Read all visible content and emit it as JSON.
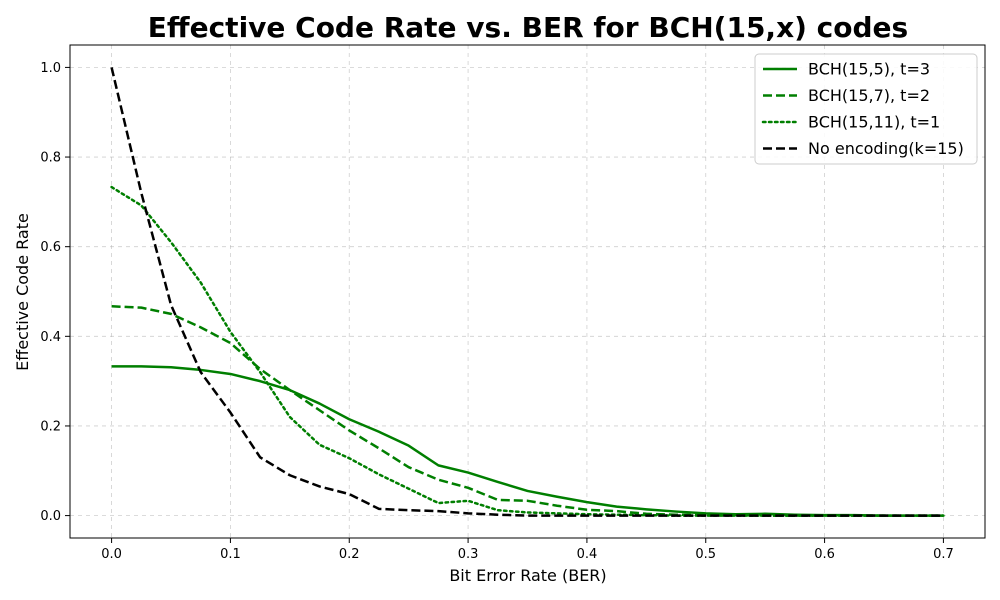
{
  "chart_data": {
    "type": "line",
    "title": "Effective Code Rate vs. BER for BCH(15,x) codes",
    "xlabel": "Bit Error Rate (BER)",
    "ylabel": "Effective Code Rate",
    "xlim": [
      -0.035,
      0.735
    ],
    "ylim": [
      -0.05,
      1.05
    ],
    "xticks": [
      0.0,
      0.1,
      0.2,
      0.3,
      0.4,
      0.5,
      0.6,
      0.7
    ],
    "xtick_labels": [
      "0.0",
      "0.1",
      "0.2",
      "0.3",
      "0.4",
      "0.5",
      "0.6",
      "0.7"
    ],
    "yticks": [
      0.0,
      0.2,
      0.4,
      0.6,
      0.8,
      1.0
    ],
    "ytick_labels": [
      "0.0",
      "0.2",
      "0.4",
      "0.6",
      "0.8",
      "1.0"
    ],
    "grid": true,
    "legend_position": "top-right",
    "x": [
      0.0,
      0.025,
      0.05,
      0.075,
      0.1,
      0.125,
      0.15,
      0.175,
      0.2,
      0.225,
      0.25,
      0.275,
      0.3,
      0.325,
      0.35,
      0.375,
      0.4,
      0.425,
      0.45,
      0.475,
      0.5,
      0.525,
      0.55,
      0.575,
      0.6,
      0.625,
      0.65,
      0.675,
      0.7
    ],
    "series": [
      {
        "name": "BCH(15,5), t=3",
        "color": "#007f00",
        "style": "solid",
        "values": [
          0.333,
          0.333,
          0.331,
          0.325,
          0.316,
          0.3,
          0.28,
          0.25,
          0.215,
          0.187,
          0.156,
          0.112,
          0.096,
          0.075,
          0.055,
          0.042,
          0.03,
          0.02,
          0.014,
          0.009,
          0.005,
          0.003,
          0.004,
          0.002,
          0.001,
          0.001,
          0.0,
          0.0,
          0.0
        ]
      },
      {
        "name": "BCH(15,7), t=2",
        "color": "#007f00",
        "style": "dashed",
        "values": [
          0.467,
          0.464,
          0.45,
          0.42,
          0.385,
          0.327,
          0.28,
          0.235,
          0.19,
          0.15,
          0.108,
          0.08,
          0.062,
          0.035,
          0.033,
          0.022,
          0.013,
          0.01,
          0.004,
          0.002,
          0.001,
          0.001,
          0.0,
          0.0,
          0.0,
          0.0,
          0.0,
          0.0,
          0.0
        ]
      },
      {
        "name": "BCH(15,11), t=1",
        "color": "#007f00",
        "style": "dotted",
        "values": [
          0.733,
          0.692,
          0.61,
          0.52,
          0.41,
          0.32,
          0.22,
          0.158,
          0.128,
          0.092,
          0.06,
          0.028,
          0.033,
          0.012,
          0.007,
          0.005,
          0.003,
          0.002,
          0.001,
          0.0,
          0.0,
          0.0,
          0.0,
          0.0,
          0.0,
          0.0,
          0.0,
          0.0,
          0.0
        ]
      },
      {
        "name": "No encoding(k=15)",
        "color": "#000000",
        "style": "dashed",
        "values": [
          1.0,
          0.72,
          0.47,
          0.32,
          0.23,
          0.13,
          0.09,
          0.065,
          0.048,
          0.015,
          0.012,
          0.01,
          0.005,
          0.002,
          0.0,
          0.0,
          0.0,
          0.0,
          0.0,
          0.0,
          0.0,
          0.0,
          0.0,
          0.0,
          0.0,
          0.0,
          0.0,
          0.0,
          0.0
        ]
      }
    ]
  }
}
